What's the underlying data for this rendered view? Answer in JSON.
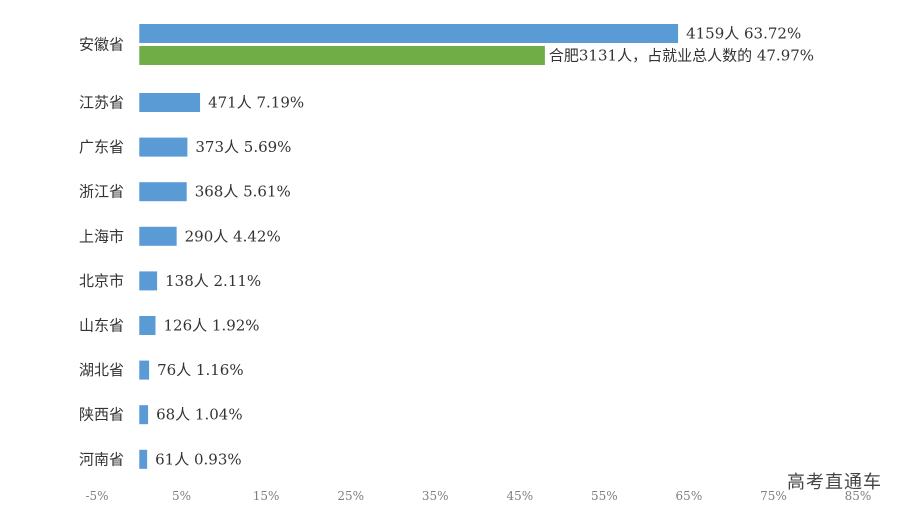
{
  "chart_data": {
    "type": "bar",
    "orientation": "horizontal",
    "categories": [
      "安徽省",
      "江苏省",
      "广东省",
      "浙江省",
      "上海市",
      "北京市",
      "山东省",
      "湖北省",
      "陕西省",
      "河南省"
    ],
    "series": [
      {
        "color": "#5b9bd5",
        "values": [
          63.72,
          7.19,
          5.69,
          5.61,
          4.42,
          2.11,
          1.92,
          1.16,
          1.04,
          0.93
        ],
        "labels": [
          "4159人 63.72%",
          "471人 7.19%",
          "373人 5.69%",
          "368人 5.61%",
          "290人 4.42%",
          "138人 2.11%",
          "126人 1.92%",
          "76人 1.16%",
          "68人 1.04%",
          "61人 0.93%"
        ]
      }
    ],
    "sub_bar": {
      "category": "安徽省",
      "value": 47.97,
      "color": "#70ad47",
      "label": "合肥3131人，占就业总人数的 47.97%"
    },
    "xlim": [
      -5,
      85
    ],
    "xticks": [
      "-5%",
      "5%",
      "15%",
      "25%",
      "35%",
      "45%",
      "55%",
      "65%",
      "75%",
      "85%"
    ],
    "xtick_values": [
      -5,
      5,
      15,
      25,
      35,
      45,
      55,
      65,
      75,
      85
    ],
    "grid": false,
    "legend": "none"
  },
  "watermark": "高考直通车"
}
